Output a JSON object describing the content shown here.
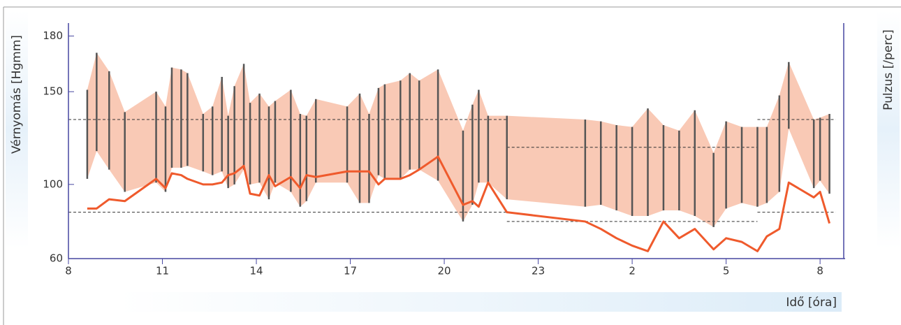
{
  "chart_data": {
    "type": "range",
    "ylabel": "Vérnyomás [Hgmm]",
    "y2label": "Pulzus [/perc]",
    "xlabel": "Idő [óra]",
    "xlim": [
      8,
      32.8
    ],
    "ylim": [
      60,
      187
    ],
    "xticks": [
      8,
      11,
      14,
      17,
      20,
      23,
      {
        "value": 26,
        "label": "2"
      },
      {
        "value": 29,
        "label": "5"
      },
      {
        "value": 32,
        "label": "8"
      }
    ],
    "yticks": [
      60,
      100,
      150,
      180
    ],
    "x": [
      8.6,
      8.9,
      9.3,
      9.8,
      10.8,
      11.1,
      11.3,
      11.6,
      11.8,
      12.3,
      12.6,
      12.9,
      13.1,
      13.3,
      13.6,
      13.8,
      14.1,
      14.4,
      14.6,
      15.1,
      15.4,
      15.6,
      15.9,
      16.9,
      17.3,
      17.6,
      17.9,
      18.1,
      18.6,
      18.9,
      19.2,
      19.8,
      20.6,
      20.9,
      21.1,
      21.4,
      22.0,
      24.5,
      25.0,
      25.5,
      26.0,
      26.5,
      27.0,
      27.5,
      28.0,
      28.6,
      29.0,
      29.5,
      30.0,
      30.3,
      30.7,
      31.0,
      31.8,
      32.0,
      32.3
    ],
    "systolic": [
      151,
      171,
      161,
      139,
      150,
      142,
      163,
      162,
      160,
      138,
      142,
      158,
      137,
      153,
      165,
      144,
      149,
      142,
      145,
      151,
      138,
      137,
      146,
      142,
      149,
      138,
      152,
      154,
      156,
      160,
      156,
      162,
      129,
      143,
      151,
      137,
      137,
      135,
      134,
      132,
      131,
      141,
      132,
      129,
      140,
      117,
      134,
      131,
      131,
      131,
      148,
      166,
      135,
      136,
      138
    ],
    "diastolic": [
      103,
      118,
      108,
      96,
      101,
      96,
      109,
      109,
      110,
      107,
      105,
      107,
      98,
      100,
      108,
      100,
      101,
      92,
      101,
      96,
      88,
      91,
      101,
      101,
      90,
      90,
      105,
      103,
      103,
      108,
      108,
      102,
      80,
      89,
      101,
      101,
      92,
      88,
      89,
      86,
      83,
      83,
      86,
      86,
      83,
      77,
      87,
      90,
      88,
      90,
      96,
      130,
      98,
      102,
      95
    ],
    "pulse": [
      87,
      87,
      92,
      91,
      103,
      98,
      106,
      105,
      103,
      100,
      100,
      101,
      105,
      106,
      110,
      95,
      94,
      105,
      99,
      104,
      98,
      105,
      104,
      107,
      107,
      107,
      100,
      103,
      103,
      105,
      108,
      115,
      89,
      91,
      88,
      101,
      85,
      80,
      76,
      71,
      67,
      64,
      80,
      71,
      76,
      65,
      71,
      69,
      64,
      72,
      76,
      101,
      93,
      96,
      79
    ],
    "bar_color": "#555555",
    "band_color": "#f9c9b5",
    "pulse_color": "#ef5a2c",
    "thresholds": [
      {
        "start": 8,
        "end": 22,
        "systolic": 135,
        "diastolic": 85
      },
      {
        "start": 22,
        "end": 30,
        "systolic": 120,
        "diastolic": 80
      },
      {
        "start": 30,
        "end": 32.5,
        "systolic": 135,
        "diastolic": 85
      }
    ]
  }
}
